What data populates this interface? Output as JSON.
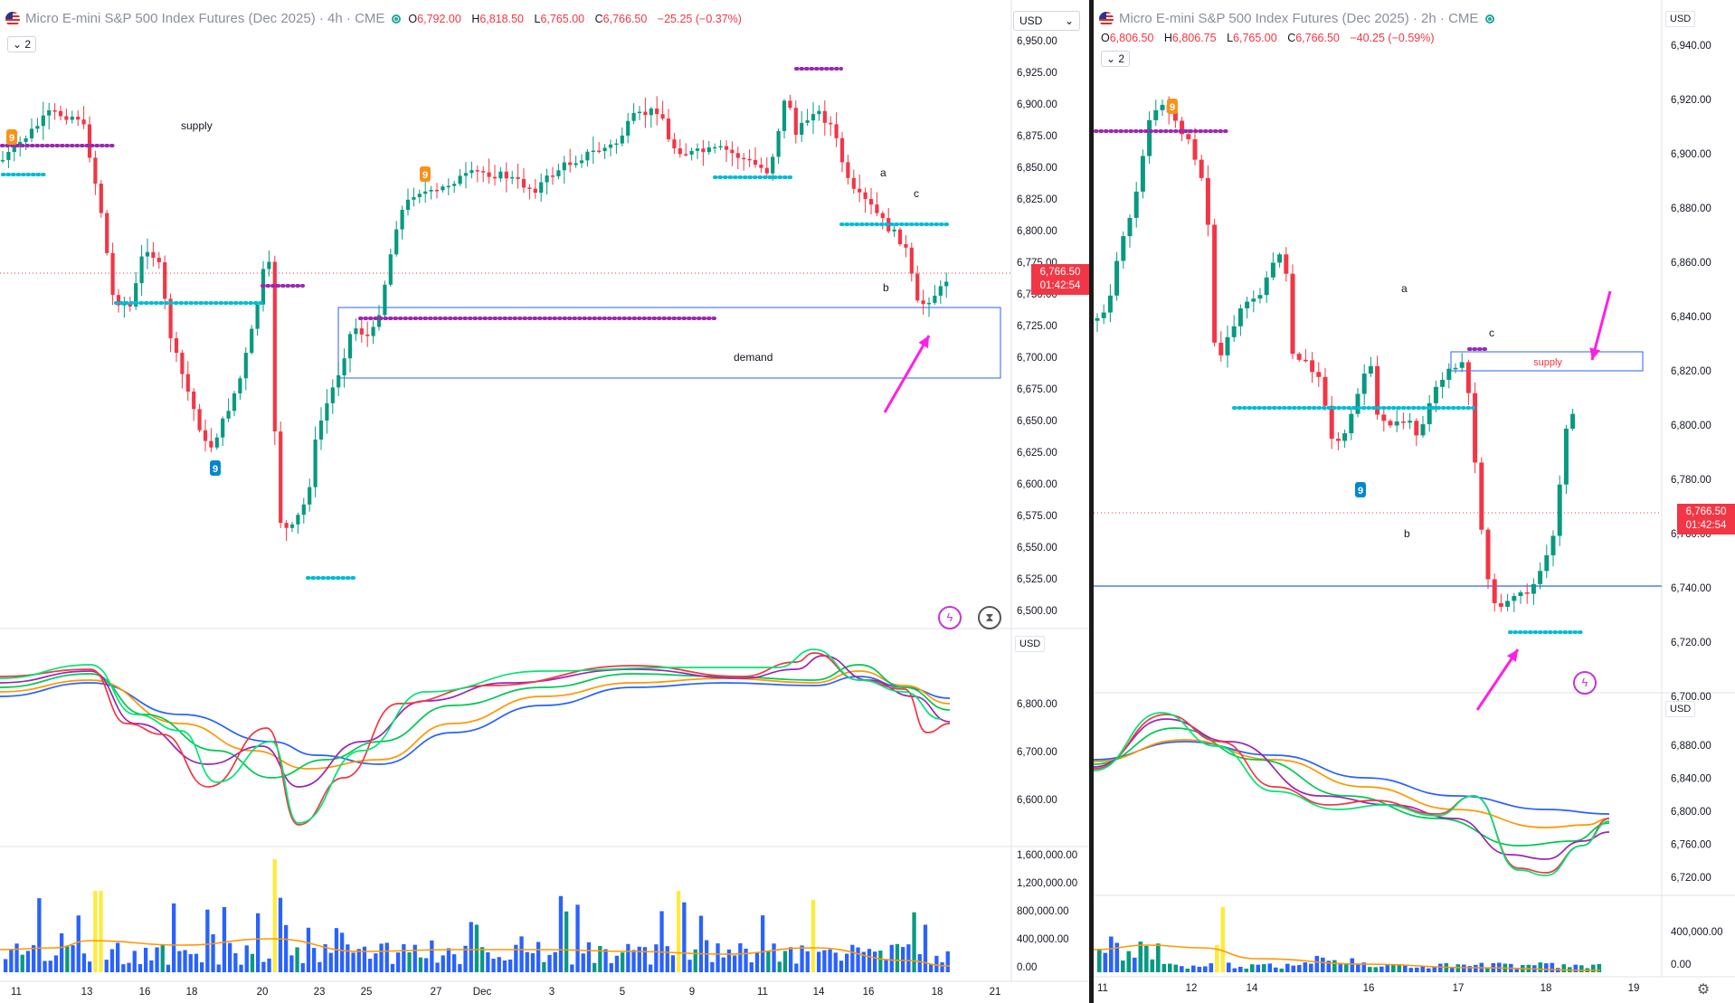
{
  "left": {
    "title": "Micro E-mini S&P 500 Index Futures (Dec 2025)",
    "timeframe": "4h",
    "exchange": "CME",
    "ohlc": {
      "o_label": "O",
      "o": "6,792.00",
      "h_label": "H",
      "h": "6,818.50",
      "l_label": "L",
      "l": "6,765.00",
      "c_label": "C",
      "c": "6,766.50",
      "change": "−25.25 (−0.37%)"
    },
    "indicator_count": "2",
    "currency": "USD",
    "price_axis": [
      "6,950.00",
      "6,925.00",
      "6,900.00",
      "6,875.00",
      "6,850.00",
      "6,825.00",
      "6,800.00",
      "6,775.00",
      "6,750.00",
      "6,725.00",
      "6,700.00",
      "6,675.00",
      "6,650.00",
      "6,625.00",
      "6,600.00",
      "6,575.00",
      "6,550.00",
      "6,525.00",
      "6,500.00"
    ],
    "last_price": "6,766.50",
    "countdown": "01:42:54",
    "osc_axis": [
      "6,800.00",
      "6,700.00",
      "6,600.00"
    ],
    "volume_axis": [
      "1,600,000.00",
      "1,200,000.00",
      "800,000.00",
      "400,000.00",
      "0.00"
    ],
    "time_axis": [
      "11",
      "13",
      "16",
      "18",
      "20",
      "23",
      "25",
      "27",
      "Dec",
      "3",
      "5",
      "9",
      "11",
      "14",
      "16",
      "18",
      "21"
    ],
    "annotations": {
      "supply": "supply",
      "demand": "demand",
      "a": "a",
      "b": "b",
      "c": "c",
      "nine_1": "9",
      "nine_2": "9",
      "nine_3": "9"
    }
  },
  "right": {
    "title": "Micro E-mini S&P 500 Index Futures (Dec 2025)",
    "timeframe": "2h",
    "exchange": "CME",
    "ohlc": {
      "o_label": "O",
      "o": "6,806.50",
      "h_label": "H",
      "h": "6,806.75",
      "l_label": "L",
      "l": "6,765.00",
      "c_label": "C",
      "c": "6,766.50",
      "change": "−40.25 (−0.59%)"
    },
    "indicator_count": "2",
    "currency": "USD",
    "price_axis": [
      "6,940.00",
      "6,920.00",
      "6,900.00",
      "6,880.00",
      "6,860.00",
      "6,840.00",
      "6,820.00",
      "6,800.00",
      "6,780.00",
      "6,760.00",
      "6,740.00",
      "6,720.00",
      "6,700.00"
    ],
    "last_price": "6,766.50",
    "countdown": "01:42:54",
    "osc_axis": [
      "6,880.00",
      "6,840.00",
      "6,800.00",
      "6,760.00",
      "6,720.00"
    ],
    "volume_axis": [
      "400,000.00",
      "0.00"
    ],
    "time_axis": [
      "11",
      "12",
      "14",
      "16",
      "17",
      "18",
      "19"
    ],
    "annotations": {
      "supply": "supply",
      "a": "a",
      "b": "b",
      "c": "c",
      "nine_1": "9",
      "nine_2": "9"
    }
  },
  "colors": {
    "up": "#089981",
    "down": "#f23645",
    "purple_dots": "#9c27b0",
    "teal_dots": "#00bcd4",
    "arrow": "#ff1ee6",
    "zone": "#2962ff",
    "vol_blue": "#2962ff",
    "vol_yellow": "#ffeb3b",
    "vol_green": "#089981"
  },
  "icons": [
    "flag-icon",
    "live-status-icon",
    "dropdown-chevron-icon",
    "lightning-icon",
    "hourglass-icon",
    "settings-icon"
  ]
}
